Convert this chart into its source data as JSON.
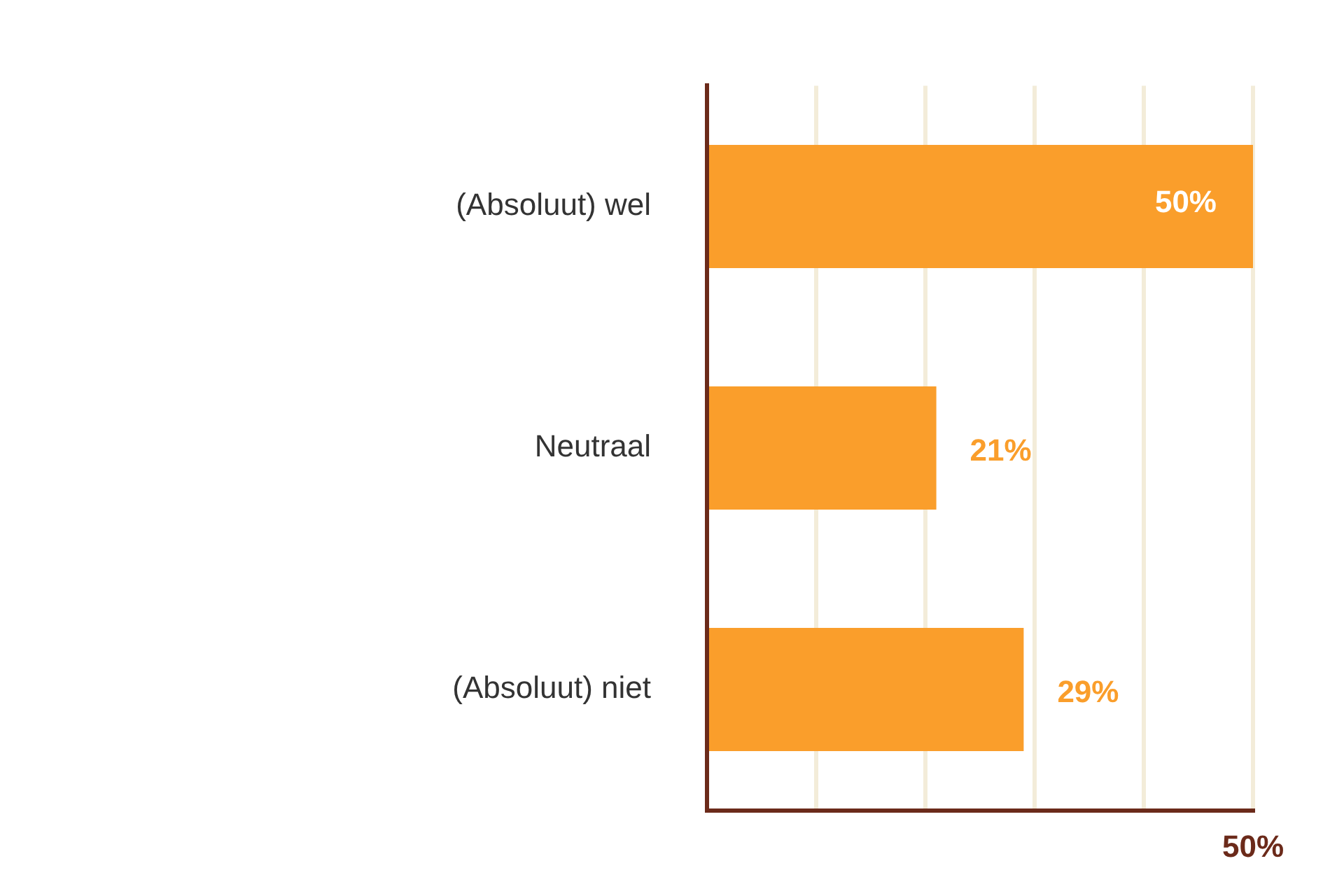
{
  "chart_data": {
    "type": "bar",
    "orientation": "horizontal",
    "categories": [
      "(Absoluut) wel",
      "Neutraal",
      "(Absoluut) niet"
    ],
    "values": [
      50,
      21,
      29
    ],
    "color": "#fa9e2b",
    "value_labels": [
      "50%",
      "21%",
      "29%"
    ],
    "xlim": [
      0,
      50
    ],
    "xticks": [
      {
        "value": 0,
        "label": null
      },
      {
        "value": 10,
        "label": null
      },
      {
        "value": 20,
        "label": null
      },
      {
        "value": 30,
        "label": null
      },
      {
        "value": 40,
        "label": null
      },
      {
        "value": 50,
        "label": "50%"
      }
    ],
    "grid": "x",
    "legend": false
  }
}
